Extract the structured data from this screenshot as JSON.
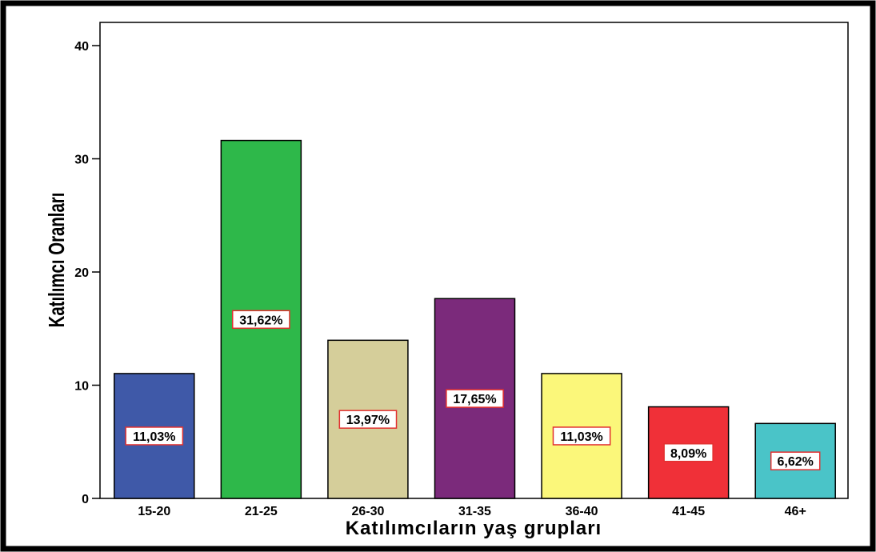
{
  "chart_data": {
    "type": "bar",
    "xlabel": "Katılımcıların yaş grupları",
    "ylabel": "Katılımcı Oranları",
    "ylim": [
      0,
      40
    ],
    "yticks": [
      0,
      10,
      20,
      30,
      40
    ],
    "grid": false,
    "categories": [
      "15-20",
      "21-25",
      "26-30",
      "31-35",
      "36-40",
      "41-45",
      "46+"
    ],
    "values": [
      11.03,
      31.62,
      13.97,
      17.65,
      11.03,
      8.09,
      6.62
    ],
    "data_labels": [
      "11,03%",
      "31,62%",
      "13,97%",
      "17,65%",
      "11,03%",
      "8,09%",
      "6,62%"
    ],
    "colors": [
      "#3f59a8",
      "#2eb84a",
      "#d5ce9a",
      "#7b2a7b",
      "#fbf77a",
      "#f03038",
      "#4ac4c8"
    ],
    "label_border_color": "#e23030"
  }
}
